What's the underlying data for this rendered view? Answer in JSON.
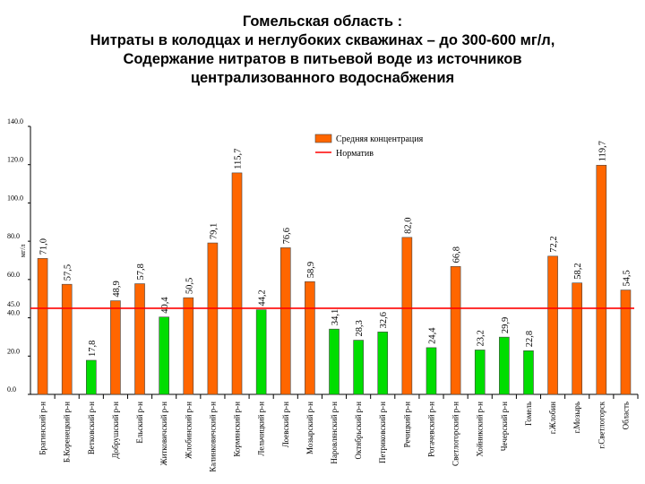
{
  "title_lines": [
    "Гомельская область :",
    "Нитраты в  колодцах и неглубоких скважинах – до 300-600 мг/л,",
    "Содержание нитратов в питьевой воде из источников",
    "централизованного водоснабжения"
  ],
  "chart_data": {
    "type": "bar",
    "title": "Гомельская область : Нитраты в  колодцах и неглубоких скважинах – до 300-600 мг/л, Содержание нитратов в питьевой воде из источников централизованного водоснабжения",
    "ylim": [
      0,
      140
    ],
    "yticks": [
      "0.0",
      "20.0",
      "40.0",
      "60.0",
      "80.0",
      "100.0",
      "120.0",
      "140.0"
    ],
    "ylabel": "мг/л",
    "categories": [
      "Брагинский р-н",
      "Б.Коренецкий р-н",
      "Ветковский р-н",
      "Добрушский р-н",
      "Ельский р-н",
      "Житковичский р-н",
      "Жлобинский р-н",
      "Калинковичский р-н",
      "Кормянский р-н",
      "Лельчицкий р-н",
      "Лоевский р-н",
      "Мозырский р-н",
      "Наровлянский р-н",
      "Октябрьский р-н",
      "Петриковский р-н",
      "Речицкий р-н",
      "Рогачевский р-н",
      "Светлогорский р-н",
      "Хойникский р-н",
      "Чечерский р-н",
      "Гомель",
      "г.Жлобин",
      "г.Мозырь",
      "г.Светлогорск",
      "Область"
    ],
    "values": [
      71.0,
      57.5,
      17.8,
      48.9,
      57.8,
      40.4,
      50.5,
      79.1,
      115.7,
      44.2,
      76.6,
      58.9,
      34.1,
      28.3,
      32.6,
      82.0,
      24.4,
      66.8,
      23.2,
      29.9,
      22.8,
      72.2,
      58.2,
      119.7,
      54.5
    ],
    "value_labels": [
      "71,0",
      "57,5",
      "17,8",
      "48,9",
      "57,8",
      "40,4",
      "50,5",
      "79,1",
      "115,7",
      "44,2",
      "76,6",
      "58,9",
      "34,1",
      "28,3",
      "32,6",
      "82,0",
      "24,4",
      "66,8",
      "23,2",
      "29,9",
      "22,8",
      "72,2",
      "58,2",
      "119,7",
      "54,5"
    ],
    "norm": {
      "value": 45.0,
      "label": "45.0"
    },
    "colors": {
      "above_norm": "#ff6600",
      "below_norm": "#00dd00",
      "norm_line": "#ff0000",
      "bar_edge": "#444444",
      "grid": "#bbbbbb"
    },
    "legend": {
      "position": "top-center",
      "bar_label": "Средняя концентрация",
      "line_label": "Норматив"
    },
    "grid": false
  }
}
